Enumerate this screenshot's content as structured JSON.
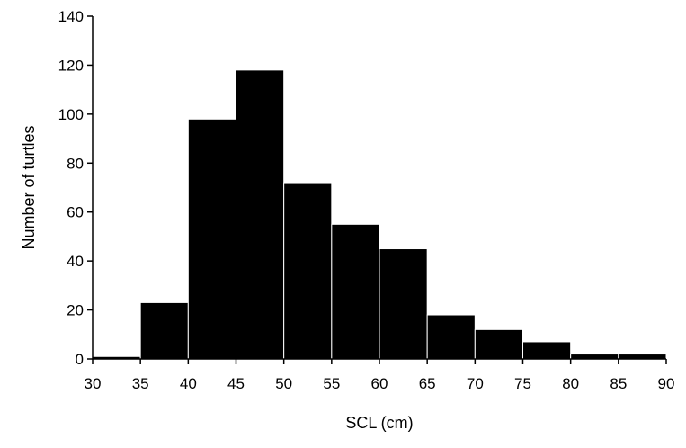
{
  "chart_data": {
    "type": "bar",
    "title": "",
    "xlabel": "SCL (cm)",
    "ylabel": "Number of turtles",
    "bin_edges": [
      30,
      35,
      40,
      45,
      50,
      55,
      60,
      65,
      70,
      75,
      80,
      85,
      90
    ],
    "values": [
      1,
      23,
      98,
      118,
      72,
      55,
      45,
      18,
      12,
      7,
      2,
      2
    ],
    "xlim": [
      30,
      90
    ],
    "ylim": [
      0,
      140
    ],
    "x_ticks": [
      30,
      35,
      40,
      45,
      50,
      55,
      60,
      65,
      70,
      75,
      80,
      85,
      90
    ],
    "y_ticks": [
      0,
      20,
      40,
      60,
      80,
      100,
      120,
      140
    ],
    "bar_color": "#000000",
    "bar_edge_color": "#ffffff",
    "grid": false,
    "legend": "none"
  }
}
